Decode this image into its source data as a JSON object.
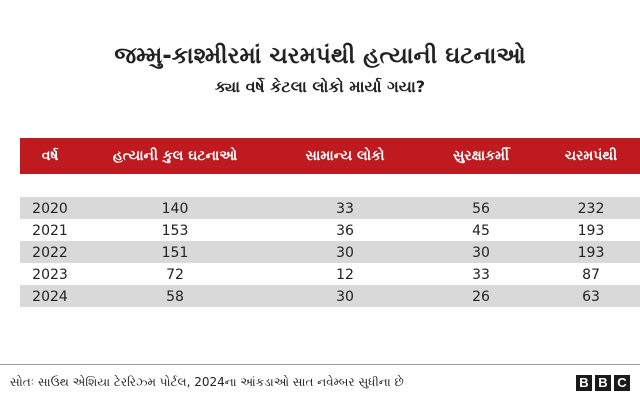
{
  "title": "જમ્મુ-કાશ્મીરમાં ચરમપંથી હત્યાની ઘટનાઓ",
  "subtitle": "ક્યા વર્ષે કેટલા લોકો માર્યા ગયા?",
  "colors": {
    "header_bg": "#bf1a1f",
    "row_shade": "#d9d9d9"
  },
  "table": {
    "headers": [
      "વર્ષ",
      "હત્યાની કુલ ઘટનાઓ",
      "સામાન્ય લોકો",
      "સુરક્ષાકર્મી",
      "ચરમપંથી"
    ],
    "rows": [
      [
        "2020",
        "140",
        "33",
        "56",
        "232"
      ],
      [
        "2021",
        "153",
        "36",
        "45",
        "193"
      ],
      [
        "2022",
        "151",
        "30",
        "30",
        "193"
      ],
      [
        "2023",
        "72",
        "12",
        "33",
        "87"
      ],
      [
        "2024",
        "58",
        "30",
        "26",
        "63"
      ]
    ]
  },
  "footer": {
    "source": "સોતઃ સાઉથ એશિયા ટેરરિઝ્મ પોર્ટલ, 2024ના આંકડાઓ સાત નવેમ્બર સુધીના છે",
    "logo_letters": [
      "B",
      "B",
      "C"
    ]
  }
}
